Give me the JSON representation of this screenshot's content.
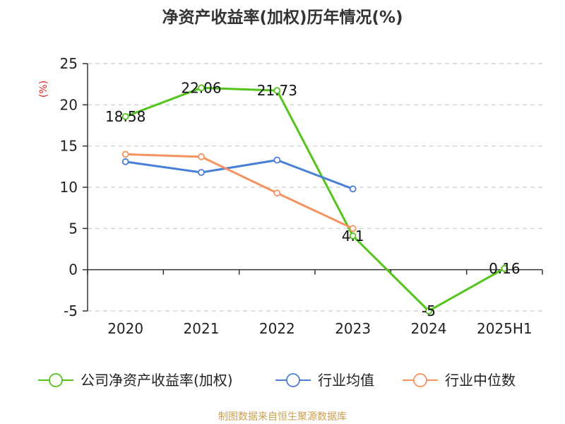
{
  "chart_data": {
    "type": "line",
    "title": "净资产收益率(加权)历年情况(%)",
    "ylabel": "(%)",
    "categories": [
      "2020",
      "2021",
      "2022",
      "2023",
      "2024",
      "2025H1"
    ],
    "ylim": [
      -5,
      25
    ],
    "yticks": [
      -5,
      0,
      5,
      10,
      15,
      20,
      25
    ],
    "grid": true,
    "legend_position": "bottom",
    "series": [
      {
        "name": "公司净资产收益率(加权)",
        "color": "#52c41a",
        "values": [
          18.58,
          22.06,
          21.73,
          4.1,
          -5,
          0.16
        ],
        "labels": [
          "18.58",
          "22.06",
          "21.73",
          "4.1",
          "-5",
          "0.16"
        ]
      },
      {
        "name": "行业均值",
        "color": "#4a7fd8",
        "values": [
          13.1,
          11.8,
          13.3,
          9.8,
          null,
          null
        ]
      },
      {
        "name": "行业中位数",
        "color": "#f5925e",
        "values": [
          14.0,
          13.7,
          9.3,
          5.0,
          null,
          null
        ]
      }
    ]
  },
  "source_text": "制图数据来自恒生聚源数据库",
  "colors": {
    "source": "#c8a050",
    "unit": "#dd2222",
    "grid": "#cccccc",
    "axis": "#333333"
  }
}
